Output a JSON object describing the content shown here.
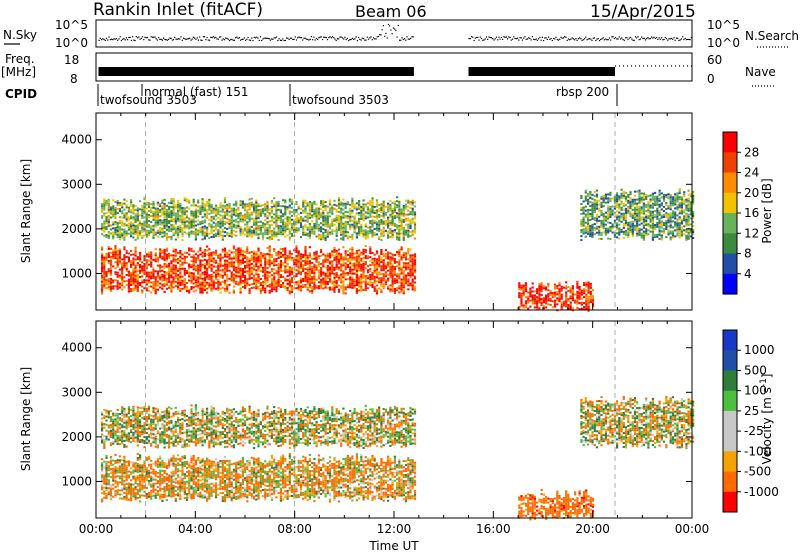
{
  "header": {
    "title": "Rankin Inlet (fitACF)",
    "beam": "Beam 06",
    "date": "15/Apr/2015"
  },
  "colors": {
    "scale_power": [
      "#0000ff",
      "#1f4fa8",
      "#3c8a3c",
      "#66b35a",
      "#f2c200",
      "#ff8c00",
      "#f04000",
      "#ff0000"
    ],
    "scale_velocity": [
      "#ff0000",
      "#ff6a00",
      "#f6a200",
      "#c8c8c8",
      "#c8c8c8",
      "#4cbf3c",
      "#2e7d3a",
      "#1f4fa8",
      "#1838c8"
    ],
    "ground_scatter": "#c8c8c8"
  },
  "strip_panels": {
    "sky": {
      "left_label": "N.Sky",
      "right_label": "N.Search",
      "left_ticks": [
        "10^5",
        "10^0"
      ],
      "right_ticks": [
        "10^5",
        "10^0"
      ],
      "right_legend_style": "dotted"
    },
    "freq": {
      "left_label_line1": "Freq.",
      "left_label_line2": "[MHz]",
      "right_label": "Nave",
      "left_ticks": [
        "18",
        "8"
      ],
      "right_ticks": [
        "60",
        "0"
      ],
      "right_legend_style": "dotted"
    },
    "cpid": {
      "label": "CPID",
      "segments": [
        {
          "name": "twofsound 3503",
          "start_hr": 0.1
        },
        {
          "name": "normal (fast) 151",
          "start_hr": 2.0
        },
        {
          "name": "twofsound 3503",
          "start_hr": 8.0
        },
        {
          "name": "rbsp 200",
          "start_hr": 20.9
        }
      ],
      "segment_label_positions": {
        "twofsound 3503": "below-left",
        "normal (fast) 151": "upper",
        "rbsp 200": "right-aligned"
      }
    }
  },
  "chart_data": [
    {
      "type": "heatmap",
      "title": "",
      "variable": "Power",
      "colorbar_label": "Power [dB]",
      "ylabel": "Slant Range [km]",
      "xlabel": "",
      "xlim_hr": [
        0,
        24
      ],
      "ylim": [
        180,
        4600
      ],
      "yticks": [
        1000,
        2000,
        3000,
        4000
      ],
      "colorbar_ticks": [
        4,
        8,
        12,
        16,
        20,
        24,
        28
      ],
      "colorbar_range": [
        0,
        32
      ],
      "data_gap_hr": [
        12.8,
        15.0
      ],
      "mode_change_lines_hr": [
        2.0,
        8.0,
        20.9
      ],
      "scatter_bands": [
        {
          "range_km": [
            600,
            1500
          ],
          "hours": [
            0.2,
            12.8
          ],
          "typical_power_db": 26
        },
        {
          "range_km": [
            1800,
            2600
          ],
          "hours": [
            0.2,
            12.8
          ],
          "typical_power_db": 14
        },
        {
          "range_km": [
            200,
            700
          ],
          "hours": [
            17.0,
            20.0
          ],
          "typical_power_db": 28
        },
        {
          "range_km": [
            1800,
            2800
          ],
          "hours": [
            19.5,
            24.0
          ],
          "typical_power_db": 12
        }
      ]
    },
    {
      "type": "heatmap",
      "title": "",
      "variable": "Velocity",
      "colorbar_label": "Velocity [m s^-1]",
      "ylabel": "Slant Range [km]",
      "xlabel": "Time UT",
      "xlim_hr": [
        0,
        24
      ],
      "ylim": [
        180,
        4600
      ],
      "yticks": [
        1000,
        2000,
        3000,
        4000
      ],
      "xticks": [
        "00:00",
        "04:00",
        "08:00",
        "12:00",
        "16:00",
        "20:00",
        "00:00"
      ],
      "colorbar_ticks": [
        "1000",
        "500",
        "100",
        "25",
        "-25",
        "-100",
        "-500",
        "-1000"
      ],
      "data_gap_hr": [
        12.8,
        15.0
      ],
      "mode_change_lines_hr": [
        2.0,
        8.0,
        20.9
      ],
      "scatter_bands": [
        {
          "range_km": [
            600,
            1500
          ],
          "hours": [
            0.2,
            12.8
          ],
          "typical_velocity": -100
        },
        {
          "range_km": [
            1800,
            2600
          ],
          "hours": [
            0.2,
            12.8
          ],
          "typical_velocity": 0
        },
        {
          "range_km": [
            200,
            700
          ],
          "hours": [
            17.0,
            20.0
          ],
          "typical_velocity": -300
        },
        {
          "range_km": [
            1800,
            2800
          ],
          "hours": [
            19.5,
            24.0
          ],
          "typical_velocity": 0
        }
      ]
    }
  ]
}
